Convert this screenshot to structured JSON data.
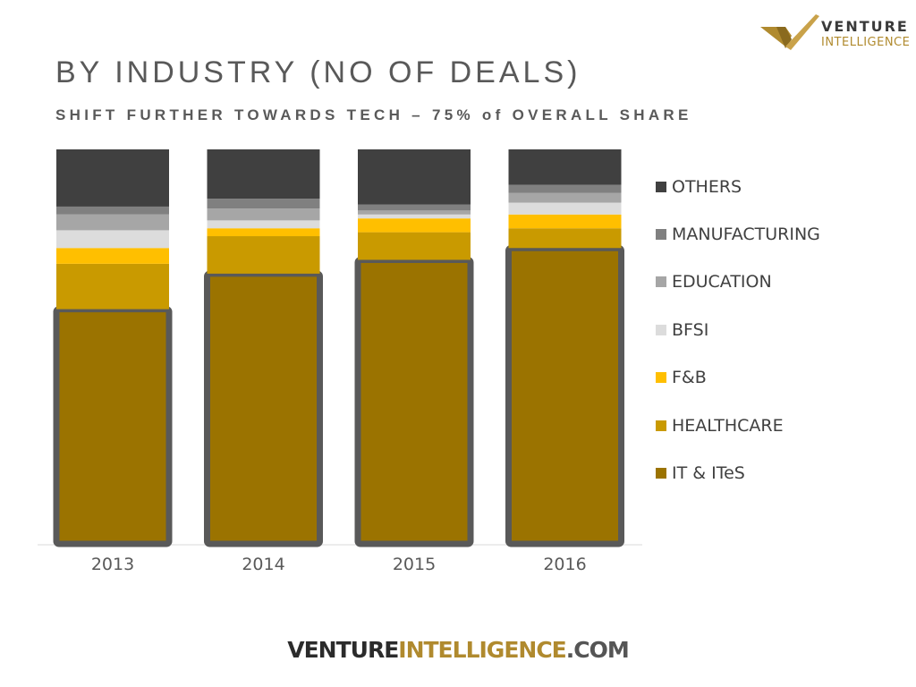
{
  "slide": {
    "title": "BY INDUSTRY (NO OF DEALS)",
    "subtitle": "SHIFT FURTHER TOWARDS TECH – 75% of OVERALL SHARE"
  },
  "logo": {
    "line1": "VENTURE",
    "line2": "INTELLIGENCE"
  },
  "footer": {
    "part1": "VENTURE",
    "part2": "INTELLIGENCE",
    "part3": ".COM"
  },
  "colors": {
    "accent_gold": "#b08a2e",
    "highlight_border": "#595959"
  },
  "chart_data": {
    "type": "bar",
    "stacked": true,
    "percent_stacked": true,
    "categories": [
      "2013",
      "2014",
      "2015",
      "2016"
    ],
    "series": [
      {
        "name": "IT & ITeS",
        "color": "#9b7300",
        "values": [
          59.5,
          68.5,
          72,
          75
        ]
      },
      {
        "name": "HEALTHCARE",
        "color": "#c99a00",
        "values": [
          11.5,
          9.5,
          7,
          5
        ]
      },
      {
        "name": "F&B",
        "color": "#ffbf00",
        "values": [
          4,
          2,
          3.5,
          3.5
        ]
      },
      {
        "name": "BFSI",
        "color": "#dcdcdc",
        "values": [
          4.5,
          2,
          1,
          3
        ]
      },
      {
        "name": "EDUCATION",
        "color": "#a6a6a6",
        "values": [
          4,
          3,
          1,
          2.5
        ]
      },
      {
        "name": "MANUFACTURING",
        "color": "#808080",
        "values": [
          2,
          2.5,
          1.5,
          2
        ]
      },
      {
        "name": "OTHERS",
        "color": "#404040",
        "values": [
          14.5,
          12.5,
          14,
          9
        ]
      }
    ],
    "highlighted_series": "IT & ITeS",
    "ylim": [
      0,
      100
    ],
    "legend_position": "right",
    "legend_order": "reverse",
    "grid": false
  }
}
